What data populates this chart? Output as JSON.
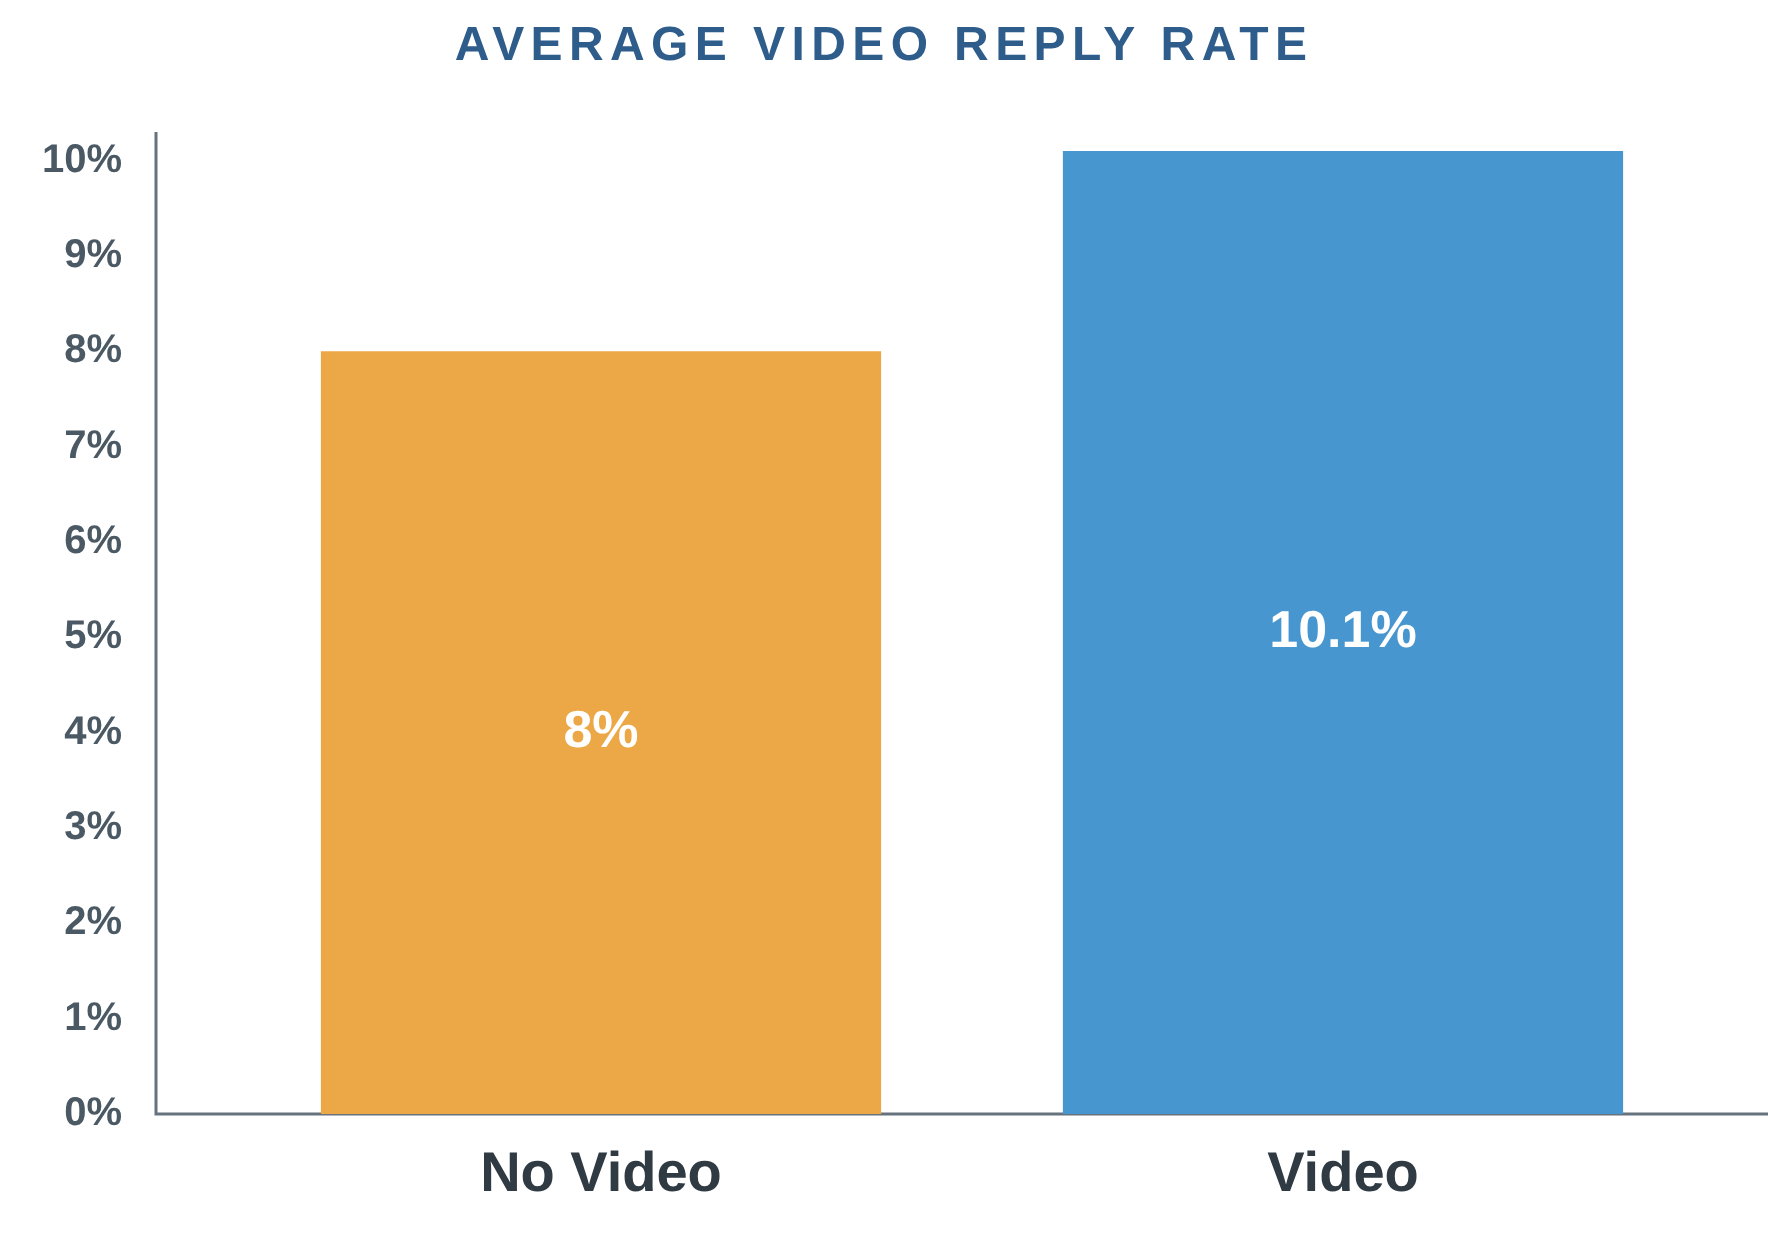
{
  "chart_data": {
    "type": "bar",
    "title": "AVERAGE VIDEO REPLY RATE",
    "categories": [
      "No Video",
      "Video"
    ],
    "values": [
      8,
      10.1
    ],
    "colors": [
      "#eca746",
      "#4896cf"
    ],
    "ylim": [
      0,
      10.3
    ],
    "yticks": [
      {
        "value": 0,
        "label": "0%"
      },
      {
        "value": 1,
        "label": "1%"
      },
      {
        "value": 2,
        "label": "2%"
      },
      {
        "value": 3,
        "label": "3%"
      },
      {
        "value": 4,
        "label": "4%"
      },
      {
        "value": 5,
        "label": "5%"
      },
      {
        "value": 6,
        "label": "6%"
      },
      {
        "value": 7,
        "label": "7%"
      },
      {
        "value": 8,
        "label": "8%"
      },
      {
        "value": 9,
        "label": "9%"
      },
      {
        "value": 10,
        "label": "10%"
      }
    ],
    "value_labels": [
      "8%",
      "10.1%"
    ]
  }
}
